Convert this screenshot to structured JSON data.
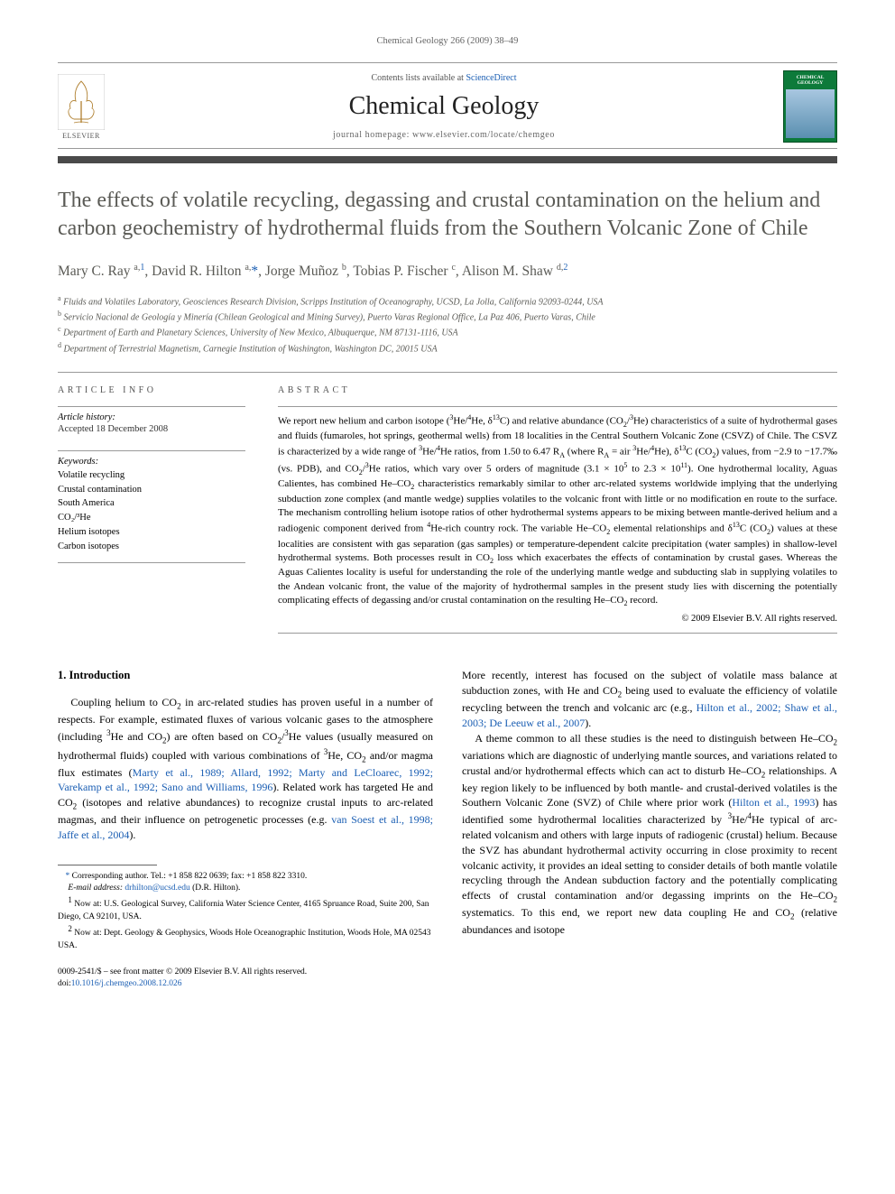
{
  "running_head": "Chemical Geology 266 (2009) 38–49",
  "masthead": {
    "contents_prefix": "Contents lists available at ",
    "contents_link": "ScienceDirect",
    "journal_name": "Chemical Geology",
    "homepage_prefix": "journal homepage: ",
    "homepage_url": "www.elsevier.com/locate/chemgeo",
    "publisher_logo_text": "ELSEVIER",
    "cover_title": "CHEMICAL GEOLOGY"
  },
  "title": "The effects of volatile recycling, degassing and crustal contamination on the helium and carbon geochemistry of hydrothermal fluids from the Southern Volcanic Zone of Chile",
  "authors_html": "Mary C. Ray <sup>a,</sup><sup><a href='#'>1</a></sup>, David R. Hilton <sup>a,</sup><span class='star'>*</span>, Jorge Muñoz <sup>b</sup>, Tobias P. Fischer <sup>c</sup>, Alison M. Shaw <sup>d,</sup><sup><a href='#'>2</a></sup>",
  "affiliations": [
    "Fluids and Volatiles Laboratory, Geosciences Research Division, Scripps Institution of Oceanography, UCSD, La Jolla, California 92093-0244, USA",
    "Servicio Nacional de Geología y Minería (Chilean Geological and Mining Survey), Puerto Varas Regional Office, La Paz 406, Puerto Varas, Chile",
    "Department of Earth and Planetary Sciences, University of New Mexico, Albuquerque, NM 87131-1116, USA",
    "Department of Terrestrial Magnetism, Carnegie Institution of Washington, Washington DC, 20015 USA"
  ],
  "aff_markers": [
    "a",
    "b",
    "c",
    "d"
  ],
  "article_info": {
    "label": "article info",
    "history_head": "Article history:",
    "history_body": "Accepted 18 December 2008",
    "keywords_head": "Keywords:",
    "keywords": [
      "Volatile recycling",
      "Crustal contamination",
      "South America",
      "CO₂/³He",
      "Helium isotopes",
      "Carbon isotopes"
    ]
  },
  "abstract": {
    "label": "abstract",
    "text_html": "We report new helium and carbon isotope (<sup>3</sup>He/<sup>4</sup>He, δ<sup>13</sup>C) and relative abundance (CO<sub>2</sub>/<sup>3</sup>He) characteristics of a suite of hydrothermal gases and fluids (fumaroles, hot springs, geothermal wells) from 18 localities in the Central Southern Volcanic Zone (CSVZ) of Chile. The CSVZ is characterized by a wide range of <sup>3</sup>He/<sup>4</sup>He ratios, from 1.50 to 6.47 R<sub>A</sub> (where R<sub>A</sub> = air <sup>3</sup>He/<sup>4</sup>He), δ<sup>13</sup>C (CO<sub>2</sub>) values, from −2.9 to −17.7‰ (vs. PDB), and CO<sub>2</sub>/<sup>3</sup>He ratios, which vary over 5 orders of magnitude (3.1 × 10<sup>5</sup> to 2.3 × 10<sup>11</sup>). One hydrothermal locality, Aguas Calientes, has combined He–CO<sub>2</sub> characteristics remarkably similar to other arc-related systems worldwide implying that the underlying subduction zone complex (and mantle wedge) supplies volatiles to the volcanic front with little or no modification en route to the surface. The mechanism controlling helium isotope ratios of other hydrothermal systems appears to be mixing between mantle-derived helium and a radiogenic component derived from <sup>4</sup>He-rich country rock. The variable He–CO<sub>2</sub> elemental relationships and δ<sup>13</sup>C (CO<sub>2</sub>) values at these localities are consistent with gas separation (gas samples) or temperature-dependent calcite precipitation (water samples) in shallow-level hydrothermal systems. Both processes result in CO<sub>2</sub> loss which exacerbates the effects of contamination by crustal gases. Whereas the Aguas Calientes locality is useful for understanding the role of the underlying mantle wedge and subducting slab in supplying volatiles to the Andean volcanic front, the value of the majority of hydrothermal samples in the present study lies with discerning the potentially complicating effects of degassing and/or crustal contamination on the resulting He–CO<sub>2</sub> record.",
    "copyright": "© 2009 Elsevier B.V. All rights reserved."
  },
  "body": {
    "heading": "1. Introduction",
    "col1_html": "Coupling helium to CO<sub>2</sub> in arc-related studies has proven useful in a number of respects. For example, estimated fluxes of various volcanic gases to the atmosphere (including <sup>3</sup>He and CO<sub>2</sub>) are often based on CO<sub>2</sub>/<sup>3</sup>He values (usually measured on hydrothermal fluids) coupled with various combinations of <sup>3</sup>He, CO<sub>2</sub> and/or magma flux estimates (<a href='#'>Marty et al., 1989; Allard, 1992; Marty and LeCloarec, 1992; Varekamp et al., 1992; Sano and Williams, 1996</a>). Related work has targeted He and CO<sub>2</sub> (isotopes and relative abundances) to recognize crustal inputs to arc-related magmas, and their influence on petrogenetic processes (e.g. <a href='#'>van Soest et al., 1998; Jaffe et al., 2004</a>).",
    "col2_html": "More recently, interest has focused on the subject of volatile mass balance at subduction zones, with He and CO<sub>2</sub> being used to evaluate the efficiency of volatile recycling between the trench and volcanic arc (e.g., <a href='#'>Hilton et al., 2002; Shaw et al., 2003; De Leeuw et al., 2007</a>).",
    "col2b_html": "A theme common to all these studies is the need to distinguish between He–CO<sub>2</sub> variations which are diagnostic of underlying mantle sources, and variations related to crustal and/or hydrothermal effects which can act to disturb He–CO<sub>2</sub> relationships. A key region likely to be influenced by both mantle- and crustal-derived volatiles is the Southern Volcanic Zone (SVZ) of Chile where prior work (<a href='#'>Hilton et al., 1993</a>) has identified some hydrothermal localities characterized by <sup>3</sup>He/<sup>4</sup>He typical of arc-related volcanism and others with large inputs of radiogenic (crustal) helium. Because the SVZ has abundant hydrothermal activity occurring in close proximity to recent volcanic activity, it provides an ideal setting to consider details of both mantle volatile recycling through the Andean subduction factory and the potentially complicating effects of crustal contamination and/or degassing imprints on the He–CO<sub>2</sub> systematics. To this end, we report new data coupling He and CO<sub>2</sub> (relative abundances and isotope"
  },
  "footnotes": {
    "corr": "Corresponding author. Tel.: +1 858 822 0639; fax: +1 858 822 3310.",
    "email_label": "E-mail address:",
    "email": "drhilton@ucsd.edu",
    "email_name": "(D.R. Hilton).",
    "n1": "Now at: U.S. Geological Survey, California Water Science Center, 4165 Spruance Road, Suite 200, San Diego, CA 92101, USA.",
    "n2": "Now at: Dept. Geology & Geophysics, Woods Hole Oceanographic Institution, Woods Hole, MA 02543 USA."
  },
  "footer": {
    "line1": "0009-2541/$ – see front matter © 2009 Elsevier B.V. All rights reserved.",
    "doi_prefix": "doi:",
    "doi": "10.1016/j.chemgeo.2008.12.026"
  },
  "colors": {
    "link": "#1a5eb3",
    "text_muted": "#5a5a55",
    "rule_dark": "#4a4a4a",
    "cover_green": "#0d7a3a"
  }
}
